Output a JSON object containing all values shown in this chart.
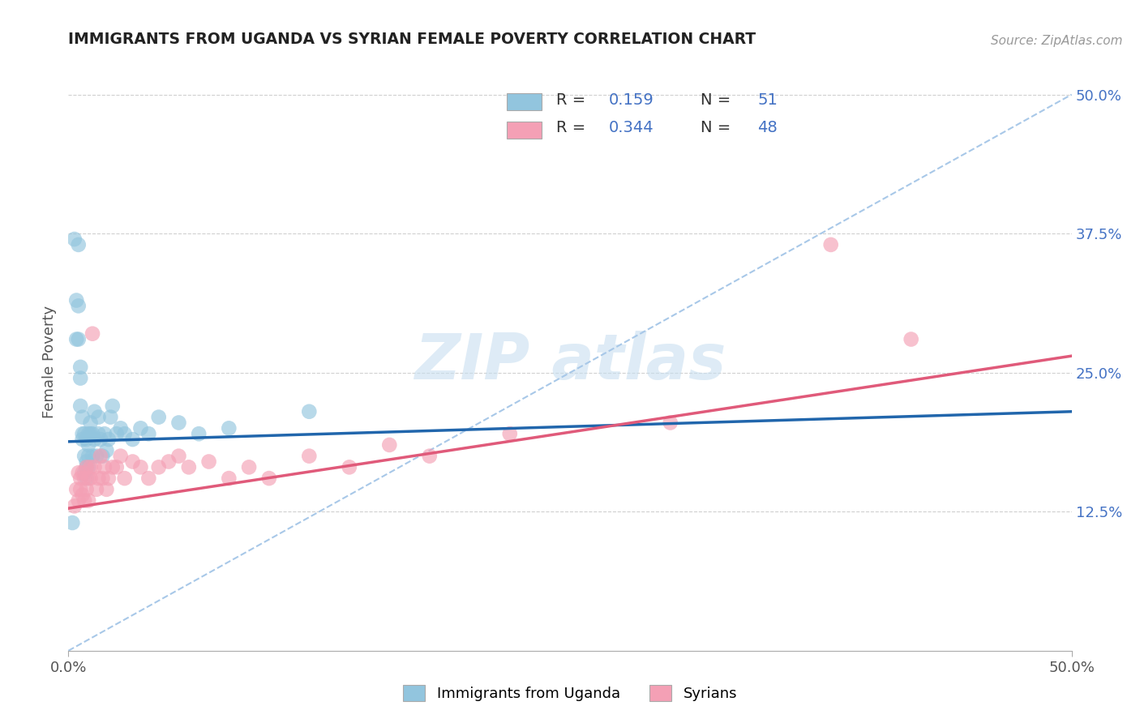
{
  "title": "IMMIGRANTS FROM UGANDA VS SYRIAN FEMALE POVERTY CORRELATION CHART",
  "source": "Source: ZipAtlas.com",
  "ylabel": "Female Poverty",
  "legend_label1": "Immigrants from Uganda",
  "legend_label2": "Syrians",
  "R1": 0.159,
  "N1": 51,
  "R2": 0.344,
  "N2": 48,
  "color_blue": "#92c5de",
  "color_pink": "#f4a0b5",
  "line_blue": "#2166ac",
  "line_pink": "#e05a7a",
  "line_dashed_color": "#a8c8e8",
  "grid_color": "#d0d0d0",
  "ytick_color": "#4472c4",
  "xlim": [
    0.0,
    0.5
  ],
  "ylim": [
    0.0,
    0.52
  ],
  "yticks": [
    0.125,
    0.25,
    0.375,
    0.5
  ],
  "ytick_labels": [
    "12.5%",
    "25.0%",
    "37.5%",
    "50.0%"
  ],
  "blue_line_y0": 0.188,
  "blue_line_y1": 0.215,
  "pink_line_y0": 0.128,
  "pink_line_y1": 0.265,
  "blue_x": [
    0.002,
    0.003,
    0.004,
    0.004,
    0.005,
    0.005,
    0.005,
    0.006,
    0.006,
    0.006,
    0.007,
    0.007,
    0.007,
    0.008,
    0.008,
    0.008,
    0.009,
    0.009,
    0.009,
    0.009,
    0.01,
    0.01,
    0.01,
    0.01,
    0.011,
    0.011,
    0.012,
    0.012,
    0.013,
    0.013,
    0.014,
    0.015,
    0.015,
    0.016,
    0.017,
    0.018,
    0.019,
    0.02,
    0.021,
    0.022,
    0.024,
    0.026,
    0.028,
    0.032,
    0.036,
    0.04,
    0.045,
    0.055,
    0.065,
    0.08,
    0.12
  ],
  "blue_y": [
    0.115,
    0.37,
    0.315,
    0.28,
    0.365,
    0.31,
    0.28,
    0.255,
    0.245,
    0.22,
    0.195,
    0.19,
    0.21,
    0.175,
    0.16,
    0.195,
    0.19,
    0.17,
    0.155,
    0.165,
    0.195,
    0.175,
    0.185,
    0.165,
    0.195,
    0.205,
    0.195,
    0.175,
    0.215,
    0.19,
    0.175,
    0.21,
    0.195,
    0.19,
    0.175,
    0.195,
    0.18,
    0.19,
    0.21,
    0.22,
    0.195,
    0.2,
    0.195,
    0.19,
    0.2,
    0.195,
    0.21,
    0.205,
    0.195,
    0.2,
    0.215
  ],
  "pink_x": [
    0.003,
    0.004,
    0.005,
    0.005,
    0.006,
    0.006,
    0.007,
    0.007,
    0.008,
    0.008,
    0.009,
    0.009,
    0.01,
    0.01,
    0.011,
    0.011,
    0.012,
    0.013,
    0.014,
    0.015,
    0.016,
    0.017,
    0.018,
    0.019,
    0.02,
    0.022,
    0.024,
    0.026,
    0.028,
    0.032,
    0.036,
    0.04,
    0.045,
    0.05,
    0.055,
    0.06,
    0.07,
    0.08,
    0.09,
    0.1,
    0.12,
    0.14,
    0.16,
    0.18,
    0.22,
    0.3,
    0.38,
    0.42
  ],
  "pink_y": [
    0.13,
    0.145,
    0.135,
    0.16,
    0.155,
    0.145,
    0.14,
    0.16,
    0.155,
    0.135,
    0.165,
    0.145,
    0.155,
    0.135,
    0.165,
    0.155,
    0.285,
    0.165,
    0.145,
    0.155,
    0.175,
    0.155,
    0.165,
    0.145,
    0.155,
    0.165,
    0.165,
    0.175,
    0.155,
    0.17,
    0.165,
    0.155,
    0.165,
    0.17,
    0.175,
    0.165,
    0.17,
    0.155,
    0.165,
    0.155,
    0.175,
    0.165,
    0.185,
    0.175,
    0.195,
    0.205,
    0.365,
    0.28
  ]
}
